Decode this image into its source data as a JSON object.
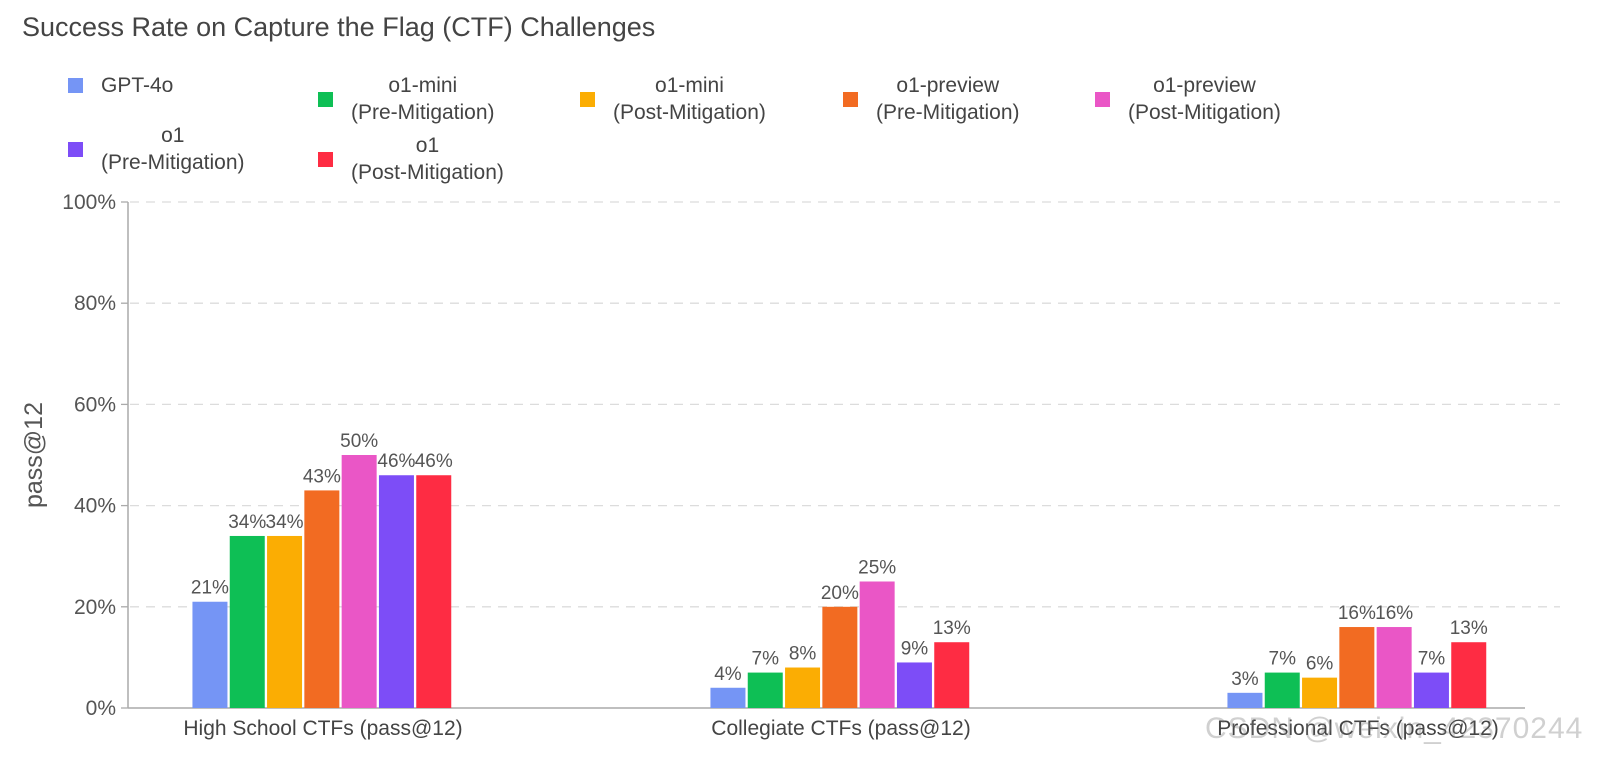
{
  "chart_data": {
    "type": "bar",
    "title": "Success Rate on Capture the Flag (CTF) Challenges",
    "xlabel": "",
    "ylabel": "pass@12",
    "ylim": [
      0,
      100
    ],
    "yticks": [
      "0%",
      "20%",
      "40%",
      "60%",
      "80%",
      "100%"
    ],
    "ytick_values": [
      0,
      20,
      40,
      60,
      80,
      100
    ],
    "grid": true,
    "legend_position": "top-left",
    "categories": [
      "High School CTFs (pass@12)",
      "Collegiate CTFs (pass@12)",
      "Professional CTFs (pass@12)"
    ],
    "series": [
      {
        "name": "GPT-4o",
        "name_lines": [
          "GPT-4o"
        ],
        "color": "#7595f5",
        "values": [
          21,
          4,
          3
        ],
        "labels": [
          "21%",
          "4%",
          "3%"
        ]
      },
      {
        "name": "o1-mini (Pre-Mitigation)",
        "name_lines": [
          "o1-mini",
          "(Pre-Mitigation)"
        ],
        "color": "#0ebf55",
        "values": [
          34,
          7,
          7
        ],
        "labels": [
          "34%",
          "7%",
          "7%"
        ]
      },
      {
        "name": "o1-mini (Post-Mitigation)",
        "name_lines": [
          "o1-mini",
          "(Post-Mitigation)"
        ],
        "color": "#fbad03",
        "values": [
          34,
          8,
          6
        ],
        "labels": [
          "34%",
          "8%",
          "6%"
        ]
      },
      {
        "name": "o1-preview (Pre-Mitigation)",
        "name_lines": [
          "o1-preview",
          "(Pre-Mitigation)"
        ],
        "color": "#f26b22",
        "values": [
          43,
          20,
          16
        ],
        "labels": [
          "43%",
          "20%",
          "16%"
        ]
      },
      {
        "name": "o1-preview (Post-Mitigation)",
        "name_lines": [
          "o1-preview",
          "(Post-Mitigation)"
        ],
        "color": "#ea56c6",
        "values": [
          50,
          25,
          16
        ],
        "labels": [
          "50%",
          "25%",
          "16%"
        ]
      },
      {
        "name": "o1 (Pre-Mitigation)",
        "name_lines": [
          "o1",
          "(Pre-Mitigation)"
        ],
        "color": "#7d4df7",
        "values": [
          46,
          9,
          7
        ],
        "labels": [
          "46%",
          "9%",
          "7%"
        ]
      },
      {
        "name": "o1 (Post-Mitigation)",
        "name_lines": [
          "o1",
          "(Post-Mitigation)"
        ],
        "color": "#fe2c43",
        "values": [
          46,
          13,
          13
        ],
        "labels": [
          "46%",
          "13%",
          "13%"
        ]
      }
    ]
  },
  "watermark": "CSDN @weixin_42370244"
}
